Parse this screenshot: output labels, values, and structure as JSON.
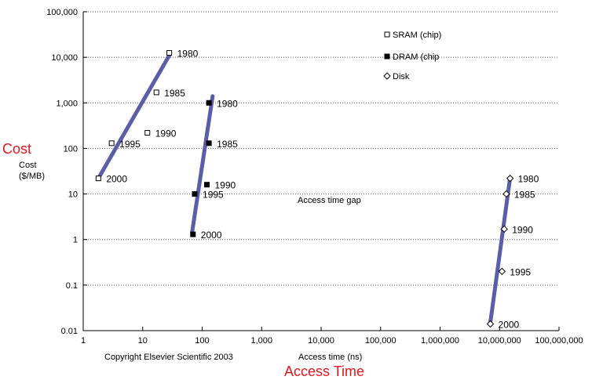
{
  "chart_data": {
    "type": "scatter",
    "x_scale": "log",
    "y_scale": "log",
    "xlim": [
      1,
      100000000
    ],
    "ylim": [
      0.01,
      100000
    ],
    "x_ticks": [
      "1",
      "10",
      "100",
      "1,000",
      "10,000",
      "100,000",
      "1,000,000",
      "10,000,000",
      "100,000,000"
    ],
    "y_ticks": [
      "0.01",
      "0.1",
      "1",
      "10",
      "100",
      "1,000",
      "10,000",
      "100,000"
    ],
    "xlabel": "Access time (ns)",
    "xlabel_big": "Access Time",
    "ylabel_big": "Cost",
    "ylabel_line1": "Cost",
    "ylabel_line2": "($/MB)",
    "grid": "horizontal dotted",
    "legend_placement": "top-right",
    "annotation": "Access time gap",
    "copyright": "Copyright Elsevier Scientific 2003",
    "trend_color": "#5a5ea8",
    "series": [
      {
        "name": "SRAM (chip)",
        "marker": "open-square",
        "points": [
          {
            "label": "1980",
            "x": 28,
            "y": 12500
          },
          {
            "label": "1985",
            "x": 17,
            "y": 1700
          },
          {
            "label": "1990",
            "x": 12,
            "y": 220
          },
          {
            "label": "1995",
            "x": 3,
            "y": 130
          },
          {
            "label": "2000",
            "x": 1.8,
            "y": 22
          }
        ],
        "trend": [
          [
            1.9,
            25
          ],
          [
            28,
            11000
          ]
        ]
      },
      {
        "name": "DRAM (chip",
        "marker": "filled-square",
        "points": [
          {
            "label": "1980",
            "x": 130,
            "y": 1000
          },
          {
            "label": "1985",
            "x": 130,
            "y": 130
          },
          {
            "label": "1990",
            "x": 120,
            "y": 16
          },
          {
            "label": "1995",
            "x": 75,
            "y": 10
          },
          {
            "label": "2000",
            "x": 70,
            "y": 1.3
          }
        ],
        "trend": [
          [
            68,
            1.5
          ],
          [
            150,
            1400
          ]
        ]
      },
      {
        "name": "Disk",
        "marker": "open-diamond",
        "points": [
          {
            "label": "1980",
            "x": 15000000,
            "y": 22
          },
          {
            "label": "1985",
            "x": 13000000,
            "y": 10
          },
          {
            "label": "1990",
            "x": 12000000,
            "y": 1.7
          },
          {
            "label": "1995",
            "x": 11000000,
            "y": 0.2
          },
          {
            "label": "2000",
            "x": 7000000,
            "y": 0.014
          }
        ],
        "trend": [
          [
            7000000,
            0.015
          ],
          [
            15000000,
            22
          ]
        ]
      }
    ]
  }
}
